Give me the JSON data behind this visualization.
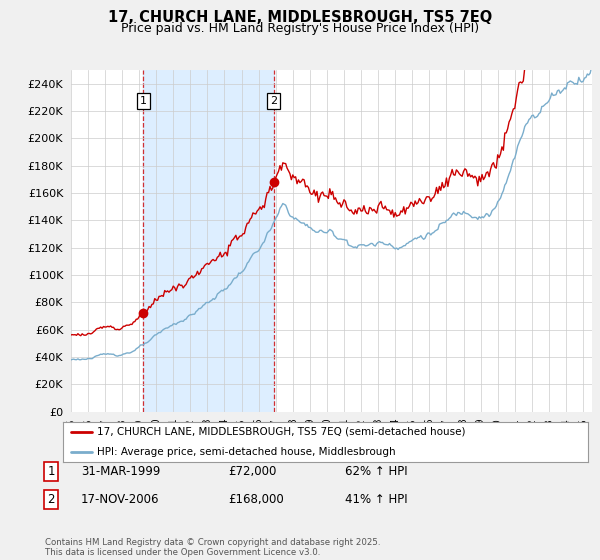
{
  "title": "17, CHURCH LANE, MIDDLESBROUGH, TS5 7EQ",
  "subtitle": "Price paid vs. HM Land Registry's House Price Index (HPI)",
  "red_label": "17, CHURCH LANE, MIDDLESBROUGH, TS5 7EQ (semi-detached house)",
  "blue_label": "HPI: Average price, semi-detached house, Middlesbrough",
  "transaction1_label": "1",
  "transaction1_date": "31-MAR-1999",
  "transaction1_price": "£72,000",
  "transaction1_hpi": "62% ↑ HPI",
  "transaction2_label": "2",
  "transaction2_date": "17-NOV-2006",
  "transaction2_price": "£168,000",
  "transaction2_hpi": "41% ↑ HPI",
  "footer": "Contains HM Land Registry data © Crown copyright and database right 2025.\nThis data is licensed under the Open Government Licence v3.0.",
  "red_color": "#cc0000",
  "blue_color": "#7aadcc",
  "shade_color": "#ddeeff",
  "background_color": "#f0f0f0",
  "plot_bg_color": "#ffffff",
  "grid_color": "#cccccc",
  "ylim": [
    0,
    250000
  ],
  "yticks": [
    0,
    20000,
    40000,
    60000,
    80000,
    100000,
    120000,
    140000,
    160000,
    180000,
    200000,
    220000,
    240000
  ],
  "transaction1_x": 1999.25,
  "transaction1_y": 72000,
  "transaction2_x": 2006.89,
  "transaction2_y": 168000,
  "xlim_left": 1995.0,
  "xlim_right": 2025.5
}
